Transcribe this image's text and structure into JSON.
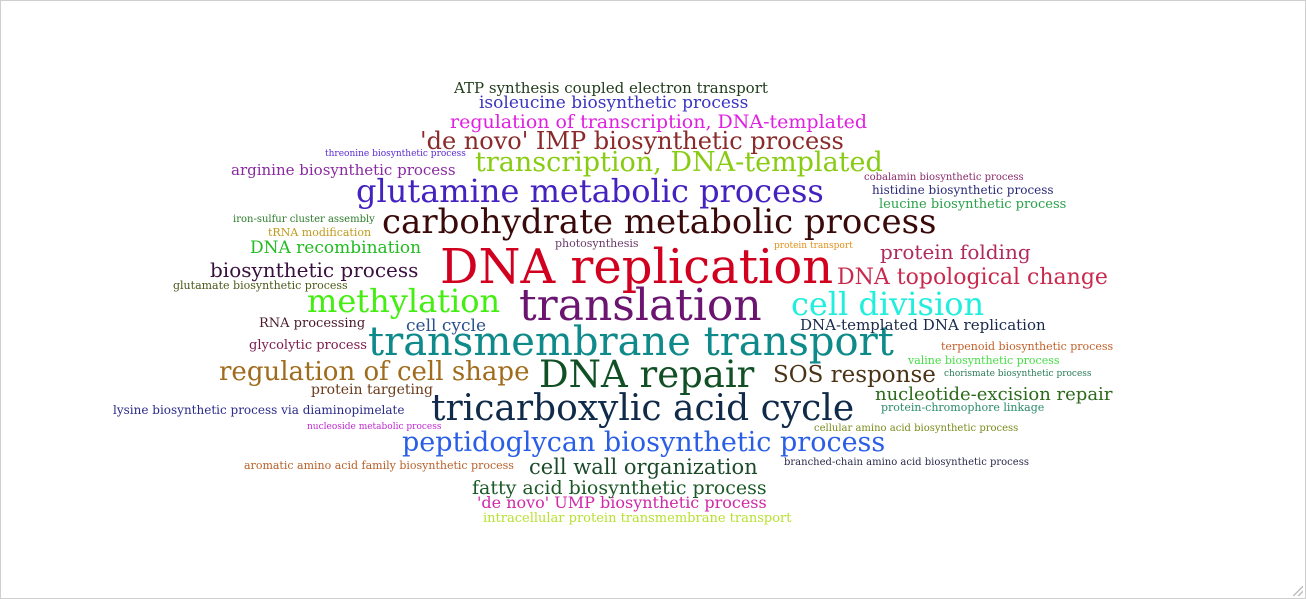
{
  "words": [
    {
      "text": "DNA replication",
      "color": "#d1001f"
    },
    {
      "text": "translation",
      "color": "#6b1570"
    },
    {
      "text": "transmembrane transport",
      "color": "#0e8a8a"
    },
    {
      "text": "carbohydrate metabolic process",
      "color": "#3a0a0a"
    },
    {
      "text": "glutamine metabolic process",
      "color": "#4422c0"
    },
    {
      "text": "tricarboxylic acid cycle",
      "color": "#102a4a"
    },
    {
      "text": "DNA repair",
      "color": "#115025"
    },
    {
      "text": "methylation",
      "color": "#44ee11"
    },
    {
      "text": "cell division",
      "color": "#22eedd"
    },
    {
      "text": "peptidoglycan biosynthetic process",
      "color": "#2a5ee6"
    },
    {
      "text": "transcription, DNA-templated",
      "color": "#88cc11"
    },
    {
      "text": "regulation of cell shape",
      "color": "#a06b1c"
    },
    {
      "text": "'de novo' IMP biosynthetic process",
      "color": "#8a2a2a"
    },
    {
      "text": "SOS response",
      "color": "#4a3316"
    },
    {
      "text": "DNA topological change",
      "color": "#c82a4e"
    },
    {
      "text": "cell wall organization",
      "color": "#1c4a2a"
    },
    {
      "text": "fatty acid biosynthetic process",
      "color": "#1c5a28"
    },
    {
      "text": "regulation of transcription, DNA-templated",
      "color": "#e020e0"
    },
    {
      "text": "protein folding",
      "color": "#b02a5e"
    },
    {
      "text": "biosynthetic process",
      "color": "#3b1040"
    },
    {
      "text": "nucleotide-excision repair",
      "color": "#2a6a1a"
    },
    {
      "text": "isoleucine biosynthetic process",
      "color": "#3a34c0"
    },
    {
      "text": "ATP synthesis coupled electron transport",
      "color": "#1f3b1a"
    },
    {
      "text": "DNA recombination",
      "color": "#22bb22"
    },
    {
      "text": "cell cycle",
      "color": "#2a5090"
    },
    {
      "text": "DNA-templated DNA replication",
      "color": "#1a2a4a"
    },
    {
      "text": "'de novo' UMP biosynthetic process",
      "color": "#d028a8"
    },
    {
      "text": "arginine biosynthetic process",
      "color": "#8a2aa0"
    },
    {
      "text": "intracellular protein transmembrane transport",
      "color": "#b8e030"
    },
    {
      "text": "protein targeting",
      "color": "#6a3a1a"
    },
    {
      "text": "lysine biosynthetic process via diaminopimelate",
      "color": "#2a2a8a"
    },
    {
      "text": "RNA processing",
      "color": "#4a1a2a"
    },
    {
      "text": "glycolytic process",
      "color": "#7a1a4a"
    },
    {
      "text": "histidine biosynthetic process",
      "color": "#2a2a7a"
    },
    {
      "text": "leucine biosynthetic process",
      "color": "#2aa04a"
    },
    {
      "text": "cobalamin biosynthetic process",
      "color": "#8a2a6a"
    },
    {
      "text": "threonine biosynthetic process",
      "color": "#5a2ad0"
    },
    {
      "text": "iron-sulfur cluster assembly",
      "color": "#2a7a2a"
    },
    {
      "text": "tRNA modification",
      "color": "#c09a1a"
    },
    {
      "text": "photosynthesis",
      "color": "#6a3a6a"
    },
    {
      "text": "protein transport",
      "color": "#e0901a"
    },
    {
      "text": "glutamate biosynthetic process",
      "color": "#4a5a1a"
    },
    {
      "text": "terpenoid biosynthetic process",
      "color": "#c0602a"
    },
    {
      "text": "valine biosynthetic process",
      "color": "#44dd44"
    },
    {
      "text": "chorismate biosynthetic process",
      "color": "#2a7a5a"
    },
    {
      "text": "protein-chromophore linkage",
      "color": "#2a8a6a"
    },
    {
      "text": "nucleoside metabolic process",
      "color": "#c02ad0"
    },
    {
      "text": "cellular amino acid biosynthetic process",
      "color": "#7a8a1a"
    },
    {
      "text": "aromatic amino acid family biosynthetic process",
      "color": "#b8602a"
    },
    {
      "text": "branched-chain amino acid biosynthetic process",
      "color": "#2a2a4a"
    }
  ]
}
